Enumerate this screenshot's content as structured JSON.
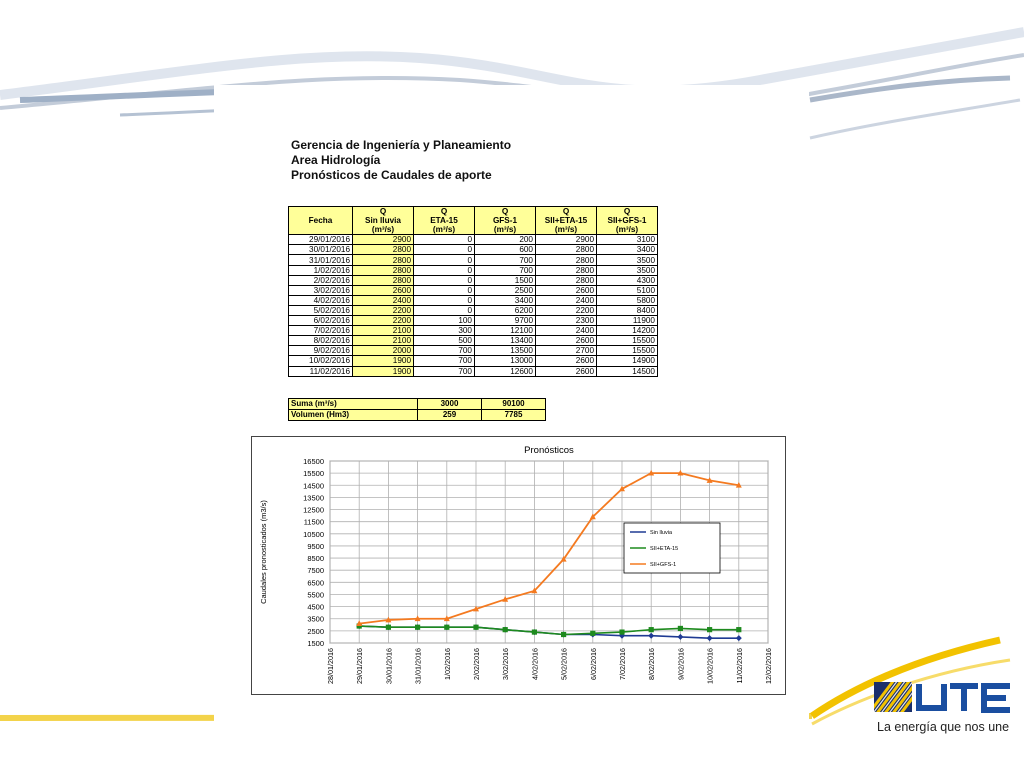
{
  "header": {
    "line1": "Gerencia de Ingeniería y Planeamiento",
    "line2": "Area Hidrología",
    "line3": "Pronósticos de Caudales de aporte"
  },
  "table": {
    "q": "Q",
    "fecha": "Fecha",
    "columns": [
      "Sin lluvia",
      "ETA-15",
      "GFS-1",
      "SII+ETA-15",
      "SII+GFS-1"
    ],
    "unit": "(m³/s)",
    "rows": [
      [
        "29/01/2016",
        "2900",
        "0",
        "200",
        "2900",
        "3100"
      ],
      [
        "30/01/2016",
        "2800",
        "0",
        "600",
        "2800",
        "3400"
      ],
      [
        "31/01/2016",
        "2800",
        "0",
        "700",
        "2800",
        "3500"
      ],
      [
        "1/02/2016",
        "2800",
        "0",
        "700",
        "2800",
        "3500"
      ],
      [
        "2/02/2016",
        "2800",
        "0",
        "1500",
        "2800",
        "4300"
      ],
      [
        "3/02/2016",
        "2600",
        "0",
        "2500",
        "2600",
        "5100"
      ],
      [
        "4/02/2016",
        "2400",
        "0",
        "3400",
        "2400",
        "5800"
      ],
      [
        "5/02/2016",
        "2200",
        "0",
        "6200",
        "2200",
        "8400"
      ],
      [
        "6/02/2016",
        "2200",
        "100",
        "9700",
        "2300",
        "11900"
      ],
      [
        "7/02/2016",
        "2100",
        "300",
        "12100",
        "2400",
        "14200"
      ],
      [
        "8/02/2016",
        "2100",
        "500",
        "13400",
        "2600",
        "15500"
      ],
      [
        "9/02/2016",
        "2000",
        "700",
        "13500",
        "2700",
        "15500"
      ],
      [
        "10/02/2016",
        "1900",
        "700",
        "13000",
        "2600",
        "14900"
      ],
      [
        "11/02/2016",
        "1900",
        "700",
        "12600",
        "2600",
        "14500"
      ]
    ]
  },
  "summary": {
    "suma_label": "Suma (m³/s)",
    "suma_eta": "3000",
    "suma_gfs": "90100",
    "volumen_label": "Volumen (Hm3)",
    "volumen_eta": "259",
    "volumen_gfs": "7785"
  },
  "chart_data": {
    "type": "line",
    "title": "Pronósticos",
    "ylabel": "Caudales pronosticados (m3/s)",
    "xlabel": "",
    "ylim": [
      1500,
      16500
    ],
    "yticks": [
      1500,
      2500,
      3500,
      4500,
      5500,
      6500,
      7500,
      8500,
      9500,
      10500,
      11500,
      12500,
      13500,
      14500,
      15500,
      16500
    ],
    "x_tick_labels": [
      "28/01/2016",
      "29/01/2016",
      "30/01/2016",
      "31/01/2016",
      "1/02/2016",
      "2/02/2016",
      "3/02/2016",
      "4/02/2016",
      "5/02/2016",
      "6/02/2016",
      "7/02/2016",
      "8/02/2016",
      "9/02/2016",
      "10/02/2016",
      "11/02/2016",
      "12/02/2016"
    ],
    "x": [
      "29/01/2016",
      "30/01/2016",
      "31/01/2016",
      "1/02/2016",
      "2/02/2016",
      "3/02/2016",
      "4/02/2016",
      "5/02/2016",
      "6/02/2016",
      "7/02/2016",
      "8/02/2016",
      "9/02/2016",
      "10/02/2016",
      "11/02/2016"
    ],
    "grid": true,
    "legend_position": "right",
    "series": [
      {
        "name": "Sin lluvia",
        "color": "#1f3a93",
        "marker": "diamond",
        "values": [
          2900,
          2800,
          2800,
          2800,
          2800,
          2600,
          2400,
          2200,
          2200,
          2100,
          2100,
          2000,
          1900,
          1900
        ]
      },
      {
        "name": "SII+ETA-15",
        "color": "#1e8a1e",
        "marker": "square",
        "values": [
          2900,
          2800,
          2800,
          2800,
          2800,
          2600,
          2400,
          2200,
          2300,
          2400,
          2600,
          2700,
          2600,
          2600
        ]
      },
      {
        "name": "SII+GFS-1",
        "color": "#f47a20",
        "marker": "triangle",
        "values": [
          3100,
          3400,
          3500,
          3500,
          4300,
          5100,
          5800,
          8400,
          11900,
          14200,
          15500,
          15500,
          14900,
          14500
        ]
      }
    ]
  },
  "brand": {
    "logo": "UTE",
    "slogan": "La energía que nos une",
    "colors": {
      "blue": "#1a4ea0",
      "yellow": "#f2c200",
      "sheet_yellow": "#ffff99"
    }
  }
}
